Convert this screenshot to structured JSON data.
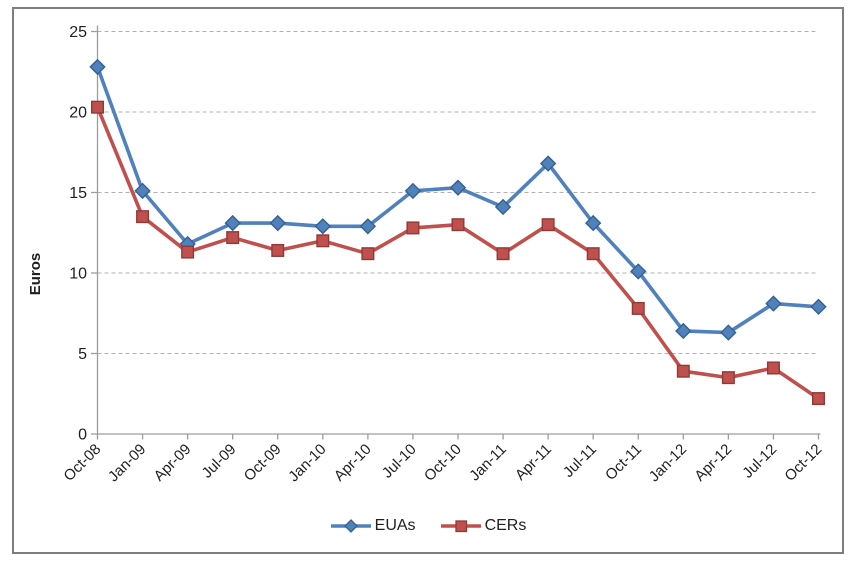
{
  "chart_data": {
    "type": "line",
    "title": "",
    "xlabel": "",
    "ylabel": "Euros",
    "ylim": [
      0,
      25
    ],
    "yticks": [
      0,
      5,
      10,
      15,
      20,
      25
    ],
    "grid": "horizontal-dashed",
    "legend_position": "bottom-center",
    "categories": [
      "Oct-08",
      "Jan-09",
      "Apr-09",
      "Jul-09",
      "Oct-09",
      "Jan-10",
      "Apr-10",
      "Jul-10",
      "Oct-10",
      "Jan-11",
      "Apr-11",
      "Jul-11",
      "Oct-11",
      "Jan-12",
      "Apr-12",
      "Jul-12",
      "Oct-12"
    ],
    "series": [
      {
        "name": "EUAs",
        "marker": "diamond",
        "color": "#4F81BD",
        "marker_stroke": "#35618F",
        "values": [
          22.8,
          15.1,
          11.8,
          13.1,
          13.1,
          12.9,
          12.9,
          15.1,
          15.3,
          14.1,
          16.8,
          13.1,
          10.1,
          6.4,
          6.3,
          8.1,
          7.9
        ]
      },
      {
        "name": "CERs",
        "marker": "square",
        "color": "#C0504D",
        "marker_stroke": "#8E3B38",
        "values": [
          20.3,
          13.5,
          11.3,
          12.2,
          11.4,
          12.0,
          11.2,
          12.8,
          13.0,
          11.2,
          13.0,
          11.2,
          7.8,
          3.9,
          3.5,
          4.1,
          2.2
        ]
      }
    ],
    "axis_color": "#9d9d9d",
    "gridline_color": "#b1b1b1",
    "text_color": "#1f1f1f"
  }
}
